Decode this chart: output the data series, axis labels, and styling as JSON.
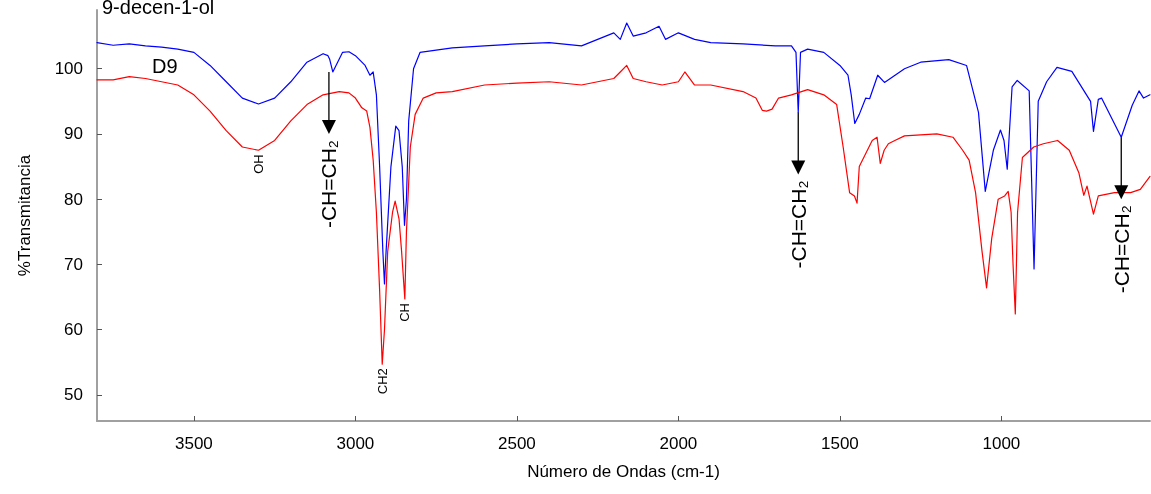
{
  "chart_data": {
    "type": "line",
    "xlabel": "Número de Ondas (cm-1)",
    "ylabel": "%Transmitancia",
    "xlim": [
      3800,
      540
    ],
    "xticks": [
      3500,
      3000,
      2500,
      2000,
      1500,
      1000
    ],
    "ylim": [
      46,
      109
    ],
    "yticks": [
      50,
      60,
      70,
      80,
      90,
      100
    ],
    "grid": false,
    "marker": "none",
    "line_style": "solid",
    "series": [
      {
        "name": "9-decen-1-ol",
        "color": "#0000ff",
        "x": [
          3800,
          3750,
          3700,
          3650,
          3600,
          3550,
          3500,
          3450,
          3400,
          3350,
          3300,
          3250,
          3200,
          3150,
          3100,
          3085,
          3080,
          3070,
          3040,
          3020,
          3000,
          2970,
          2955,
          2945,
          2935,
          2925,
          2915,
          2910,
          2905,
          2890,
          2875,
          2865,
          2855,
          2848,
          2842,
          2835,
          2820,
          2800,
          2700,
          2600,
          2500,
          2400,
          2300,
          2250,
          2200,
          2180,
          2160,
          2140,
          2100,
          2060,
          2040,
          2000,
          1950,
          1900,
          1800,
          1700,
          1650,
          1636,
          1629,
          1622,
          1600,
          1550,
          1500,
          1475,
          1465,
          1454,
          1440,
          1420,
          1408,
          1383,
          1362,
          1300,
          1250,
          1163,
          1108,
          1071,
          1050,
          1025,
          1003,
          992,
          982,
          967,
          951,
          914,
          899,
          886,
          860,
          828,
          782,
          724,
          715,
          700,
          690,
          629,
          595,
          574,
          560,
          540
        ],
        "values": [
          104,
          103.6,
          103.8,
          103.5,
          103.3,
          103,
          102.5,
          100.5,
          98,
          95.5,
          94.6,
          95.5,
          98,
          101,
          102.3,
          102,
          101.5,
          99.5,
          102.5,
          102.6,
          102,
          100.5,
          99,
          99.5,
          96,
          85,
          72,
          67,
          72,
          85,
          91.2,
          90.5,
          85,
          76,
          80,
          92,
          100,
          102.5,
          103.2,
          103.5,
          103.8,
          104,
          103.5,
          104.5,
          105.5,
          104.5,
          107,
          105,
          105.5,
          106.5,
          104.5,
          105.5,
          104.5,
          104,
          103.8,
          103.5,
          103.5,
          102.5,
          93.3,
          102.5,
          103,
          102.5,
          100.5,
          99,
          96,
          91.6,
          93,
          95.5,
          95.4,
          99,
          97.9,
          100,
          101,
          101.4,
          100.5,
          93.3,
          81.2,
          87.5,
          90.6,
          89,
          84.6,
          97.2,
          98.2,
          96.6,
          69.3,
          95,
          98,
          100.2,
          99.6,
          95,
          90.4,
          95.3,
          95.5,
          89.5,
          94.4,
          96.6,
          95.5,
          96
        ]
      },
      {
        "name": "D9",
        "color": "#ff0000",
        "x": [
          3800,
          3750,
          3700,
          3650,
          3600,
          3550,
          3500,
          3450,
          3400,
          3350,
          3300,
          3250,
          3200,
          3150,
          3100,
          3050,
          3020,
          3000,
          2980,
          2965,
          2955,
          2945,
          2935,
          2925,
          2917,
          2910,
          2900,
          2885,
          2877,
          2865,
          2857,
          2847,
          2842,
          2830,
          2815,
          2790,
          2750,
          2700,
          2600,
          2500,
          2400,
          2300,
          2200,
          2180,
          2160,
          2140,
          2100,
          2050,
          2000,
          1980,
          1950,
          1900,
          1800,
          1760,
          1740,
          1727,
          1710,
          1690,
          1650,
          1600,
          1550,
          1510,
          1490,
          1470,
          1455,
          1447,
          1440,
          1420,
          1400,
          1385,
          1375,
          1363,
          1350,
          1330,
          1300,
          1200,
          1150,
          1120,
          1100,
          1080,
          1060,
          1046,
          1030,
          1010,
          990,
          979,
          970,
          964,
          957,
          950,
          935,
          900,
          870,
          826,
          790,
          760,
          745,
          735,
          715,
          700,
          650,
          600,
          570,
          555,
          540
        ],
        "values": [
          98.3,
          98.3,
          98.8,
          98.5,
          98,
          97.5,
          96,
          93.5,
          90.5,
          88,
          87.5,
          89,
          92,
          94.5,
          96,
          96.5,
          96.3,
          95.5,
          94,
          93.5,
          91,
          86,
          78,
          66,
          54.7,
          60,
          72,
          78,
          79.7,
          77,
          72,
          64.7,
          75,
          88,
          93,
          95.5,
          96.3,
          96.5,
          97.5,
          97.8,
          98,
          97.5,
          98.5,
          99.5,
          100.5,
          98.5,
          98,
          97.5,
          98,
          99.5,
          97.5,
          97.5,
          96.5,
          95.5,
          93.6,
          93.5,
          93.8,
          95.5,
          96,
          96.8,
          96,
          94.5,
          88,
          81,
          80.5,
          79.4,
          85,
          87,
          89,
          89.5,
          85.5,
          87.5,
          88.5,
          89,
          89.7,
          90,
          89.5,
          87.5,
          86,
          81,
          72,
          66.4,
          74,
          80,
          80.5,
          81.2,
          78,
          70,
          62.4,
          78,
          86.4,
          88,
          88.5,
          89,
          87.5,
          84,
          80.6,
          82,
          77.7,
          80.5,
          81,
          81,
          81.5,
          82.5,
          83.5
        ]
      }
    ],
    "annotations": [
      {
        "text": "OH",
        "x": 3300,
        "y": 87.5
      },
      {
        "text": "CH2",
        "x": 2917,
        "y": 54.7
      },
      {
        "text": "CH",
        "x": 2847,
        "y": 64.7
      },
      {
        "text": "-CH=CH₂",
        "x": 3082,
        "y": 99.5
      },
      {
        "text": "-CH=CH₂",
        "x": 1629,
        "y": 93.3
      },
      {
        "text": "-CH=CH₂",
        "x": 629,
        "y": 89.5
      }
    ]
  }
}
